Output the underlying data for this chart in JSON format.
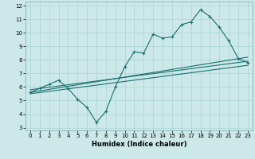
{
  "xlabel": "Humidex (Indice chaleur)",
  "ylabel": "",
  "xlim": [
    -0.5,
    23.5
  ],
  "ylim": [
    2.8,
    12.3
  ],
  "xticks": [
    0,
    1,
    2,
    3,
    4,
    5,
    6,
    7,
    8,
    9,
    10,
    11,
    12,
    13,
    14,
    15,
    16,
    17,
    18,
    19,
    20,
    21,
    22,
    23
  ],
  "yticks": [
    3,
    4,
    5,
    6,
    7,
    8,
    9,
    10,
    11,
    12
  ],
  "bg_color": "#cce8e8",
  "grid_color": "#aad4d4",
  "line_color": "#1a7070",
  "series1_x": [
    0,
    1,
    2,
    3,
    4,
    5,
    6,
    7,
    8,
    9,
    10,
    11,
    12,
    13,
    14,
    15,
    16,
    17,
    18,
    19,
    20,
    21,
    22,
    23
  ],
  "series1_y": [
    5.6,
    5.9,
    6.2,
    6.5,
    5.9,
    5.1,
    4.5,
    3.4,
    4.2,
    6.0,
    7.5,
    8.6,
    8.5,
    9.9,
    9.6,
    9.7,
    10.6,
    10.8,
    11.7,
    11.2,
    10.4,
    9.4,
    8.1,
    7.8
  ],
  "series2_x": [
    0,
    23
  ],
  "series2_y": [
    5.6,
    8.2
  ],
  "series3_x": [
    0,
    23
  ],
  "series3_y": [
    5.8,
    7.9
  ],
  "series4_x": [
    0,
    23
  ],
  "series4_y": [
    5.5,
    7.6
  ],
  "tick_fontsize": 5.0,
  "xlabel_fontsize": 6.0,
  "linewidth": 0.8,
  "marker_size": 3.0
}
